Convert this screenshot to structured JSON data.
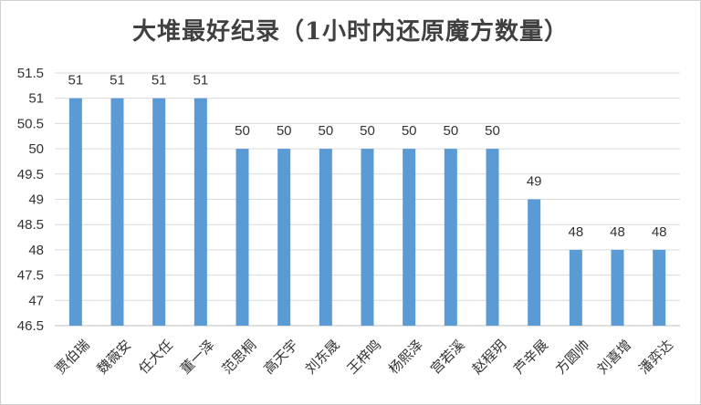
{
  "chart_data": {
    "type": "bar",
    "title": "大堆最好纪录（1小时内还原魔方数量）",
    "xlabel": "",
    "ylabel": "",
    "ylim": [
      46.5,
      51.5
    ],
    "yticks": [
      46.5,
      47,
      47.5,
      48,
      48.5,
      49,
      49.5,
      50,
      50.5,
      51,
      51.5
    ],
    "grid": true,
    "legend": "none",
    "bar_color": "#5b9bd5",
    "categories": [
      "贾伯瑞",
      "魏薇安",
      "任大任",
      "董一泽",
      "范思桐",
      "高天宇",
      "刘东晟",
      "王梓鸣",
      "杨熙泽",
      "宫若溪",
      "赵程玥",
      "芦辛展",
      "方圆帅",
      "刘喜增",
      "潘弈达"
    ],
    "values": [
      51,
      51,
      51,
      51,
      50,
      50,
      50,
      50,
      50,
      50,
      50,
      49,
      48,
      48,
      48
    ],
    "data_labels": [
      "51",
      "51",
      "51",
      "51",
      "50",
      "50",
      "50",
      "50",
      "50",
      "50",
      "50",
      "49",
      "48",
      "48",
      "48"
    ],
    "ytick_labels": [
      "46.5",
      "47",
      "47.5",
      "48",
      "48.5",
      "49",
      "49.5",
      "50",
      "50.5",
      "51",
      "51.5"
    ]
  }
}
